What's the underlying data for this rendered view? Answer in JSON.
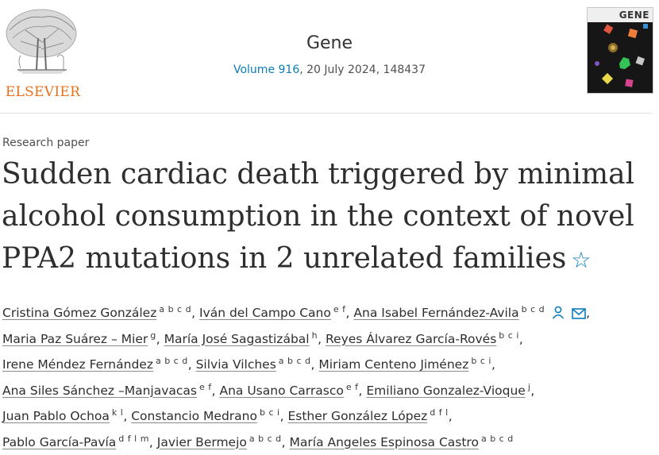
{
  "header": {
    "publisher": "ELSEVIER",
    "journal_title": "Gene",
    "volume": "Volume 916",
    "issue_details": ", 20 July 2024, 148437",
    "cover_label": "GENE"
  },
  "article": {
    "type": "Research paper",
    "title_lines": [
      "Sudden cardiac death triggered by minimal",
      "alcohol consumption in the context of novel",
      "PPA2 mutations in 2 unrelated families"
    ],
    "star_symbol": "☆"
  },
  "author_lines": [
    [
      {
        "name": "Cristina Gómez González",
        "aff": "a b c d",
        "icons": true,
        "sep": ","
      },
      {
        "name": "Iván del Campo Cano",
        "aff": "e f",
        "sep": ","
      },
      {
        "name": "Ana Isabel Fernández-Avila",
        "aff": "b c d",
        "icons": true,
        "sep": ","
      }
    ],
    [
      {
        "name": "Maria Paz Suárez – Mier",
        "aff": "g",
        "sep": ","
      },
      {
        "name": "María José Sagastizábal",
        "aff": "h",
        "sep": ","
      },
      {
        "name": "Reyes Álvarez García-Rovés",
        "aff": "b c i",
        "sep": ","
      }
    ],
    [
      {
        "name": "Irene Méndez Fernández",
        "aff": "a b c d",
        "sep": ","
      },
      {
        "name": "Silvia Vilches",
        "aff": "a b c d",
        "sep": ","
      },
      {
        "name": "Miriam Centeno Jiménez",
        "aff": "b c i",
        "sep": ","
      }
    ],
    [
      {
        "name": "Ana Siles Sánchez –Manjavacas",
        "aff": "e f",
        "sep": ","
      },
      {
        "name": "Ana Usano Carrasco",
        "aff": "e f",
        "sep": ","
      },
      {
        "name": "Emiliano Gonzalez-Vioque",
        "aff": "j",
        "sep": ","
      }
    ],
    [
      {
        "name": "Juan Pablo Ochoa",
        "aff": "k l",
        "sep": ","
      },
      {
        "name": "Constancio Medrano",
        "aff": "b c i",
        "sep": ","
      },
      {
        "name": "Esther González López",
        "aff": "d f l",
        "sep": ","
      }
    ],
    [
      {
        "name": "Pablo García-Pavía",
        "aff": "d f l m",
        "sep": ","
      },
      {
        "name": "Javier Bermejo",
        "aff": "a b c d",
        "sep": ","
      },
      {
        "name": "María Angeles Espinosa Castro",
        "aff": "a b c d",
        "sep": ""
      }
    ]
  ],
  "colors": {
    "link": "#0c7dbb",
    "elsevier_orange": "#e9711c",
    "cover_bg": "#161616"
  },
  "icon_names": [
    "elsevier-tree-logo",
    "person-icon",
    "envelope-icon",
    "star-icon"
  ]
}
